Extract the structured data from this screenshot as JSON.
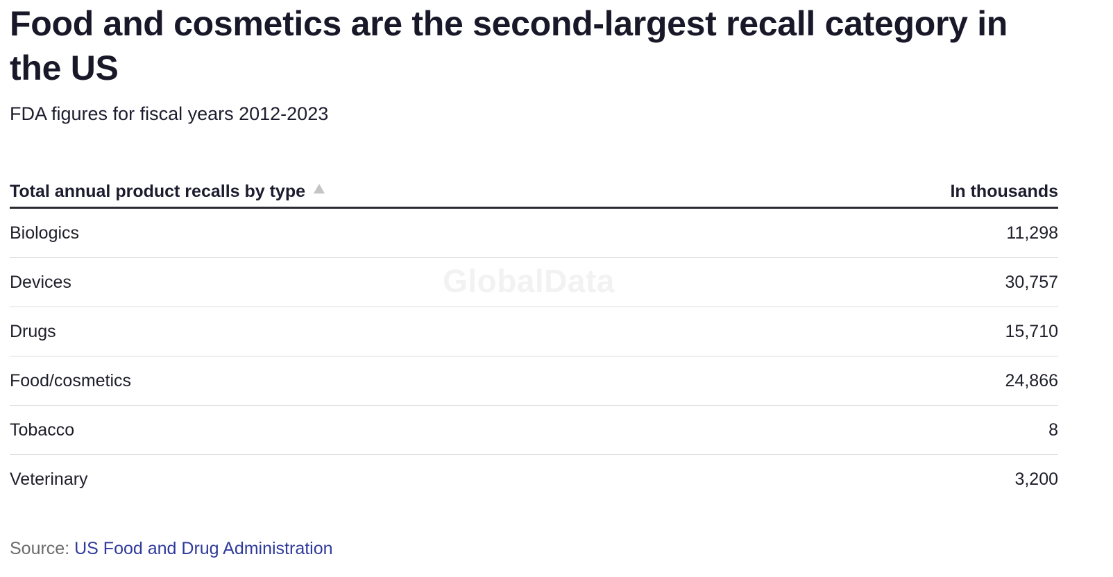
{
  "title": "Food and cosmetics are the second-largest recall category in the US",
  "subtitle": "FDA figures for fiscal years 2012-2023",
  "watermark": "GlobalData",
  "table": {
    "col_label": "Total annual product recalls by type",
    "col_value": "In thousands",
    "sort_icon": "sort-ascending-icon"
  },
  "chart_data": {
    "type": "table",
    "title": "Food and cosmetics are the second-largest recall category in the US",
    "subtitle": "FDA figures for fiscal years 2012-2023",
    "columns": [
      "Total annual product recalls by type",
      "In thousands"
    ],
    "rows": [
      {
        "label": "Biologics",
        "display": "11,298",
        "value": 11298
      },
      {
        "label": "Devices",
        "display": "30,757",
        "value": 30757
      },
      {
        "label": "Drugs",
        "display": "15,710",
        "value": 15710
      },
      {
        "label": "Food/cosmetics",
        "display": "24,866",
        "value": 24866
      },
      {
        "label": "Tobacco",
        "display": "8",
        "value": 8
      },
      {
        "label": "Veterinary",
        "display": "3,200",
        "value": 3200
      }
    ]
  },
  "source": {
    "prefix": "Source:",
    "link_text": "US Food and Drug Administration"
  }
}
